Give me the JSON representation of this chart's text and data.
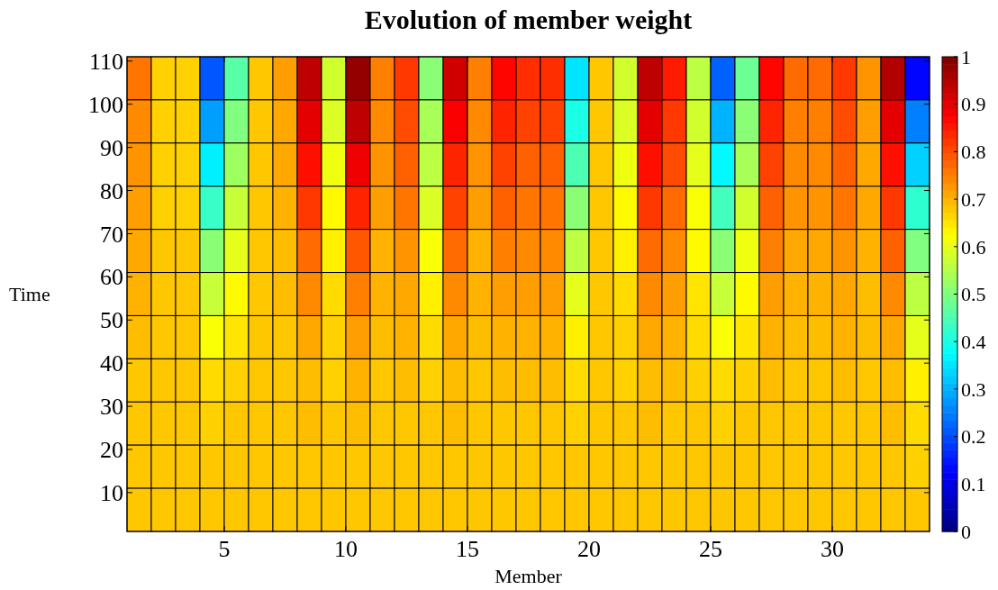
{
  "chart_data": {
    "type": "heatmap",
    "title": "Evolution of member weight",
    "xlabel": "Member",
    "ylabel": "Time",
    "xlim": [
      1,
      34
    ],
    "xticks": [
      5,
      10,
      15,
      20,
      25,
      30
    ],
    "ylim": [
      1,
      111
    ],
    "yticks": [
      10,
      20,
      30,
      40,
      50,
      60,
      70,
      80,
      90,
      100,
      110
    ],
    "clim": [
      0,
      1
    ],
    "cticks": [
      0,
      0.1,
      0.2,
      0.3,
      0.4,
      0.5,
      0.6,
      0.7,
      0.8,
      0.9,
      1
    ],
    "cells": [
      [
        0.76,
        0.67,
        0.67,
        0.21,
        0.46,
        0.68,
        0.72,
        0.94,
        0.58,
        0.98,
        0.75,
        0.82,
        0.51,
        0.92,
        0.75,
        0.87,
        0.83,
        0.83,
        0.35,
        0.68,
        0.58,
        0.94,
        0.85,
        0.56,
        0.22,
        0.48,
        0.87,
        0.77,
        0.77,
        0.82,
        0.73,
        0.95,
        0.13
      ],
      [
        0.74,
        0.67,
        0.67,
        0.28,
        0.5,
        0.68,
        0.71,
        0.9,
        0.59,
        0.94,
        0.74,
        0.8,
        0.54,
        0.88,
        0.74,
        0.84,
        0.81,
        0.81,
        0.4,
        0.68,
        0.59,
        0.9,
        0.82,
        0.58,
        0.3,
        0.51,
        0.84,
        0.75,
        0.75,
        0.8,
        0.72,
        0.9,
        0.25
      ],
      [
        0.73,
        0.67,
        0.67,
        0.36,
        0.53,
        0.68,
        0.71,
        0.86,
        0.61,
        0.89,
        0.73,
        0.78,
        0.56,
        0.84,
        0.73,
        0.81,
        0.78,
        0.78,
        0.45,
        0.68,
        0.61,
        0.86,
        0.8,
        0.6,
        0.37,
        0.54,
        0.81,
        0.74,
        0.74,
        0.78,
        0.71,
        0.86,
        0.33
      ],
      [
        0.72,
        0.67,
        0.67,
        0.43,
        0.57,
        0.68,
        0.7,
        0.82,
        0.63,
        0.84,
        0.72,
        0.76,
        0.59,
        0.81,
        0.72,
        0.78,
        0.76,
        0.76,
        0.51,
        0.68,
        0.63,
        0.82,
        0.77,
        0.62,
        0.44,
        0.58,
        0.78,
        0.73,
        0.73,
        0.76,
        0.71,
        0.82,
        0.42
      ],
      [
        0.71,
        0.68,
        0.68,
        0.51,
        0.6,
        0.68,
        0.69,
        0.77,
        0.64,
        0.79,
        0.7,
        0.73,
        0.62,
        0.77,
        0.7,
        0.75,
        0.74,
        0.74,
        0.56,
        0.68,
        0.64,
        0.77,
        0.74,
        0.63,
        0.51,
        0.61,
        0.75,
        0.71,
        0.71,
        0.73,
        0.7,
        0.78,
        0.5
      ],
      [
        0.7,
        0.68,
        0.68,
        0.57,
        0.63,
        0.68,
        0.69,
        0.74,
        0.66,
        0.75,
        0.7,
        0.71,
        0.64,
        0.74,
        0.7,
        0.72,
        0.72,
        0.72,
        0.6,
        0.68,
        0.66,
        0.74,
        0.72,
        0.65,
        0.57,
        0.63,
        0.72,
        0.7,
        0.7,
        0.71,
        0.69,
        0.74,
        0.56
      ],
      [
        0.69,
        0.68,
        0.68,
        0.62,
        0.65,
        0.68,
        0.68,
        0.71,
        0.67,
        0.72,
        0.69,
        0.7,
        0.66,
        0.71,
        0.69,
        0.7,
        0.7,
        0.7,
        0.64,
        0.68,
        0.67,
        0.71,
        0.7,
        0.66,
        0.62,
        0.65,
        0.7,
        0.69,
        0.69,
        0.7,
        0.69,
        0.71,
        0.6
      ],
      [
        0.68,
        0.68,
        0.68,
        0.66,
        0.67,
        0.68,
        0.68,
        0.69,
        0.67,
        0.7,
        0.68,
        0.69,
        0.67,
        0.69,
        0.68,
        0.69,
        0.69,
        0.69,
        0.66,
        0.68,
        0.67,
        0.69,
        0.69,
        0.67,
        0.66,
        0.67,
        0.69,
        0.68,
        0.68,
        0.69,
        0.68,
        0.69,
        0.64
      ],
      [
        0.68,
        0.68,
        0.68,
        0.67,
        0.68,
        0.68,
        0.68,
        0.69,
        0.68,
        0.69,
        0.68,
        0.68,
        0.68,
        0.69,
        0.68,
        0.68,
        0.68,
        0.68,
        0.67,
        0.68,
        0.68,
        0.69,
        0.68,
        0.68,
        0.67,
        0.68,
        0.68,
        0.68,
        0.68,
        0.68,
        0.68,
        0.69,
        0.66
      ],
      [
        0.68,
        0.68,
        0.68,
        0.68,
        0.68,
        0.68,
        0.68,
        0.68,
        0.68,
        0.68,
        0.68,
        0.68,
        0.68,
        0.68,
        0.68,
        0.68,
        0.68,
        0.68,
        0.68,
        0.68,
        0.68,
        0.68,
        0.68,
        0.68,
        0.68,
        0.68,
        0.68,
        0.68,
        0.68,
        0.68,
        0.68,
        0.68,
        0.67
      ],
      [
        0.68,
        0.68,
        0.68,
        0.68,
        0.68,
        0.68,
        0.68,
        0.68,
        0.68,
        0.68,
        0.68,
        0.68,
        0.68,
        0.68,
        0.68,
        0.68,
        0.68,
        0.68,
        0.68,
        0.68,
        0.68,
        0.68,
        0.68,
        0.68,
        0.68,
        0.68,
        0.68,
        0.68,
        0.68,
        0.68,
        0.68,
        0.68,
        0.68
      ]
    ]
  }
}
